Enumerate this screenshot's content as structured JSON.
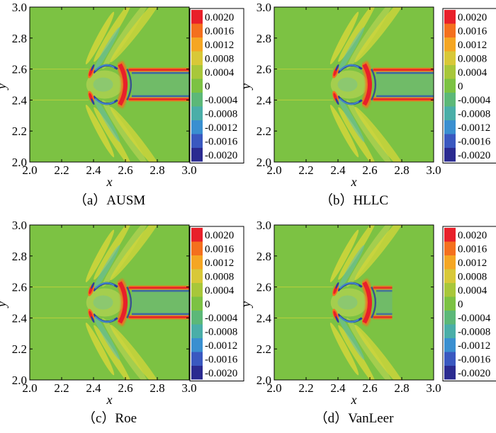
{
  "chart_data": [
    {
      "type": "heatmap",
      "panel_label": "（a）AUSM",
      "xlabel": "x",
      "ylabel": "y",
      "xlim": [
        2.0,
        3.0
      ],
      "ylim": [
        2.0,
        3.0
      ],
      "xticks": [
        "2.0",
        "2.2",
        "2.4",
        "2.6",
        "2.8",
        "3.0"
      ],
      "yticks": [
        "2.0",
        "2.2",
        "2.4",
        "2.6",
        "2.8",
        "3.0"
      ],
      "wake": "full"
    },
    {
      "type": "heatmap",
      "panel_label": "（b）HLLC",
      "xlabel": "x",
      "ylabel": "y",
      "xlim": [
        2.0,
        3.0
      ],
      "ylim": [
        2.0,
        3.0
      ],
      "xticks": [
        "2.0",
        "2.2",
        "2.4",
        "2.6",
        "2.8",
        "3.0"
      ],
      "yticks": [
        "2.0",
        "2.2",
        "2.4",
        "2.6",
        "2.8",
        "3.0"
      ],
      "wake": "full"
    },
    {
      "type": "heatmap",
      "panel_label": "（c）Roe",
      "xlabel": "x",
      "ylabel": "y",
      "xlim": [
        2.0,
        3.0
      ],
      "ylim": [
        2.0,
        3.0
      ],
      "xticks": [
        "2.0",
        "2.2",
        "2.4",
        "2.6",
        "2.8",
        "3.0"
      ],
      "yticks": [
        "2.0",
        "2.2",
        "2.4",
        "2.6",
        "2.8",
        "3.0"
      ],
      "wake": "full"
    },
    {
      "type": "heatmap",
      "panel_label": "（d）VanLeer",
      "xlabel": "x",
      "ylabel": "y",
      "xlim": [
        2.0,
        3.0
      ],
      "ylim": [
        2.0,
        3.0
      ],
      "xticks": [
        "2.0",
        "2.2",
        "2.4",
        "2.6",
        "2.8",
        "3.0"
      ],
      "yticks": [
        "2.0",
        "2.2",
        "2.4",
        "2.6",
        "2.8",
        "3.0"
      ],
      "wake": "short"
    }
  ],
  "legend": {
    "levels": [
      "0.0020",
      "0.0016",
      "0.0012",
      "0.0008",
      "0.0004",
      "0",
      "-0.0004",
      "-0.0008",
      "-0.0012",
      "-0.0016",
      "-0.0020"
    ],
    "colors": [
      "#e8202a",
      "#f4701e",
      "#f5a623",
      "#d8c838",
      "#a8c73a",
      "#7cc243",
      "#5cb878",
      "#4aaea8",
      "#3a8fd0",
      "#3a58c0",
      "#2a2a90"
    ]
  },
  "colors": {
    "background": "#7cc243",
    "light_green": "#a8cf50",
    "yellow": "#d4d63a",
    "cyan": "#62bdb0",
    "light_blue": "#4aa8d8",
    "blue": "#2c3f9f",
    "red": "#e8202a",
    "orange": "#f4701e"
  }
}
